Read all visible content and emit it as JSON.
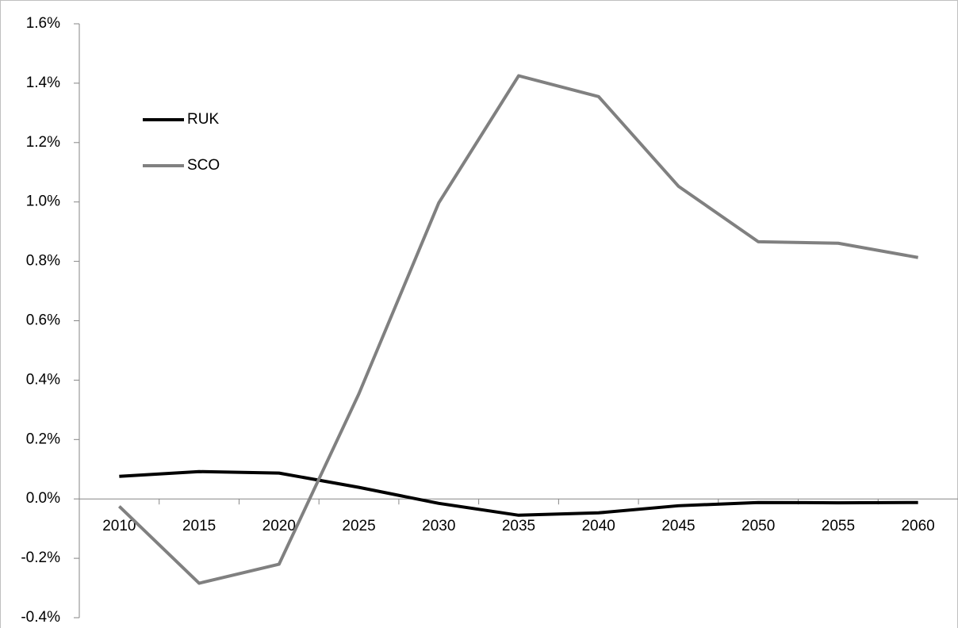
{
  "chart_data": {
    "type": "line",
    "categories": [
      "2010",
      "2015",
      "2020",
      "2025",
      "2030",
      "2035",
      "2040",
      "2045",
      "2050",
      "2055",
      "2060"
    ],
    "series": [
      {
        "name": "RUK",
        "color": "#000000",
        "values": [
          0.076,
          0.092,
          0.087,
          0.039,
          -0.015,
          -0.055,
          -0.047,
          -0.023,
          -0.012,
          -0.013,
          -0.012
        ]
      },
      {
        "name": "SCO",
        "color": "#808080",
        "values": [
          -0.025,
          -0.284,
          -0.22,
          0.354,
          0.997,
          1.425,
          1.355,
          1.053,
          0.866,
          0.861,
          0.813
        ]
      }
    ],
    "ylim": [
      -0.4,
      1.6
    ],
    "yticks": [
      {
        "value": -0.4,
        "label": "-0.4%"
      },
      {
        "value": -0.2,
        "label": "-0.2%"
      },
      {
        "value": 0,
        "label": "0.0%"
      },
      {
        "value": 0.2,
        "label": "0.2%"
      },
      {
        "value": 0.4,
        "label": "0.4%"
      },
      {
        "value": 0.6,
        "label": "0.6%"
      },
      {
        "value": 0.8,
        "label": "0.8%"
      },
      {
        "value": 1.0,
        "label": "1.0%"
      },
      {
        "value": 1.2,
        "label": "1.2%"
      },
      {
        "value": 1.4,
        "label": "1.4%"
      },
      {
        "value": 1.6,
        "label": "1.6%"
      }
    ],
    "legend": "upper left",
    "grid": false
  }
}
